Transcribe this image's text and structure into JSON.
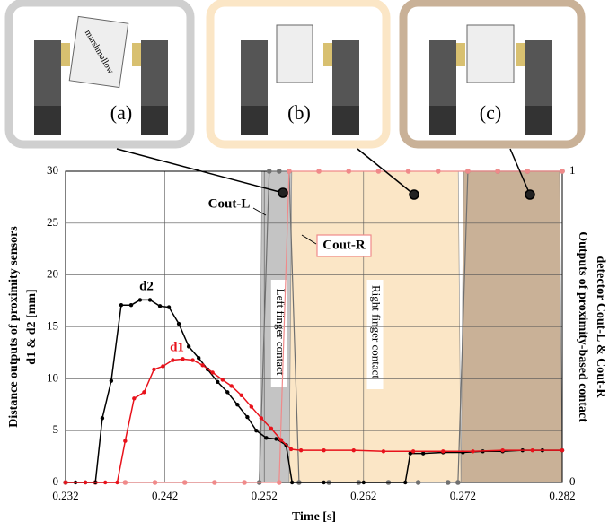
{
  "chart_data": {
    "type": "line",
    "xlabel": "Time [s]",
    "ylabel": [
      "Distance outputs of proximity sensors",
      "d1 & d2 [mm]"
    ],
    "y2label": [
      "Outputs of proximity-based contact",
      "detector Cout-L & Cout-R"
    ],
    "xlim": [
      0.232,
      0.282
    ],
    "xticks": [
      0.232,
      0.242,
      0.252,
      0.262,
      0.272,
      0.282
    ],
    "ylim": [
      0,
      30
    ],
    "yticks": [
      0,
      5,
      10,
      15,
      20,
      25,
      30
    ],
    "y2lim": [
      0,
      1
    ],
    "y2ticks": [
      0,
      1
    ],
    "grid": true,
    "regions": [
      {
        "label": "Left finger contact",
        "x": [
          0.2515,
          0.2555
        ],
        "color": "#c4c4c4"
      },
      {
        "label": "Right finger contact",
        "x": [
          0.2545,
          0.2718
        ],
        "color": "#fbe6c6"
      },
      {
        "x": [
          0.2718,
          0.282
        ],
        "color": "#c9b197"
      }
    ],
    "series": [
      {
        "name": "d2",
        "color": "#000000",
        "x": [
          0.232,
          0.233,
          0.234,
          0.235,
          0.2357,
          0.2366,
          0.2376,
          0.2386,
          0.2395,
          0.2405,
          0.2415,
          0.2424,
          0.2434,
          0.2444,
          0.2454,
          0.2463,
          0.2473,
          0.2483,
          0.2493,
          0.2503,
          0.2512,
          0.2522,
          0.2532,
          0.2542,
          0.2548,
          0.258,
          0.262,
          0.2662,
          0.2667,
          0.268,
          0.27,
          0.272,
          0.274,
          0.276,
          0.278,
          0.28,
          0.282
        ],
        "values": [
          0,
          0,
          0,
          0,
          6.2,
          9.8,
          17.1,
          17.1,
          17.6,
          17.6,
          17,
          16.9,
          15.3,
          13.1,
          12,
          10.9,
          9.7,
          8.7,
          7.5,
          6.3,
          5,
          4.3,
          4.2,
          3.6,
          0,
          0,
          0,
          0,
          2.8,
          2.8,
          2.9,
          2.9,
          3,
          3,
          3.1,
          3.1,
          3.1
        ]
      },
      {
        "name": "d1",
        "color": "#e8121b",
        "x": [
          0.232,
          0.234,
          0.236,
          0.2372,
          0.238,
          0.2389,
          0.2399,
          0.2409,
          0.2418,
          0.2428,
          0.2438,
          0.2448,
          0.2458,
          0.2468,
          0.2478,
          0.2487,
          0.2497,
          0.2507,
          0.2517,
          0.2527,
          0.2537,
          0.2547,
          0.2557,
          0.258,
          0.261,
          0.264,
          0.267,
          0.27,
          0.273,
          0.276,
          0.279,
          0.282
        ],
        "values": [
          0,
          0,
          0,
          0,
          4,
          8.1,
          8.7,
          10.9,
          11.2,
          11.8,
          11.9,
          11.8,
          11.3,
          10.6,
          9.9,
          9.3,
          8.4,
          7.3,
          6.2,
          5.2,
          4.1,
          3.2,
          3.1,
          3.1,
          3.1,
          3,
          3,
          3,
          3,
          3.1,
          3.1,
          3.1
        ]
      },
      {
        "name": "Cout-L",
        "color": "#707070",
        "axis": "y2",
        "x": [
          0.232,
          0.2515,
          0.2525,
          0.2535,
          0.2545,
          0.2555,
          0.2585,
          0.2615,
          0.2645,
          0.2675,
          0.2705,
          0.2715,
          0.2725,
          0.2755,
          0.2785,
          0.282
        ],
        "values": [
          0,
          0,
          1,
          1,
          1,
          0,
          0,
          0,
          0,
          0,
          0,
          0,
          1,
          1,
          1,
          1
        ]
      },
      {
        "name": "Cout-R",
        "color": "#f08a8a",
        "axis": "y2",
        "x": [
          0.232,
          0.235,
          0.238,
          0.241,
          0.244,
          0.247,
          0.25,
          0.2535,
          0.2545,
          0.2575,
          0.2605,
          0.2635,
          0.2665,
          0.2695,
          0.2725,
          0.2755,
          0.2785,
          0.282
        ],
        "values": [
          0,
          0,
          0,
          0,
          0,
          0,
          0,
          0,
          1,
          1,
          1,
          1,
          1,
          1,
          1,
          1,
          1,
          1
        ]
      }
    ]
  },
  "insets": [
    {
      "label": "(a)",
      "object": "marshmallow"
    },
    {
      "label": "(b)"
    },
    {
      "label": "(c)"
    }
  ]
}
